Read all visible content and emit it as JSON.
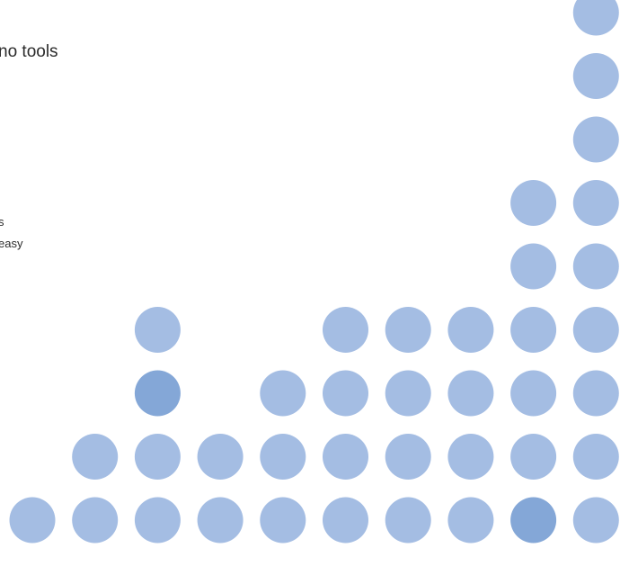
{
  "text_fragments": {
    "line_1": "no tools",
    "line_2": "s",
    "line_3": "easy"
  },
  "colors": {
    "dot_normal": "#a4bde3",
    "dot_highlight": "#84a7d7",
    "background": "#ffffff"
  },
  "chart_data": {
    "type": "scatter",
    "title": "",
    "xlabel": "",
    "ylabel": "",
    "description_note": "",
    "x_columns": [
      1,
      2,
      3,
      4,
      5,
      6,
      7,
      8,
      9,
      10
    ],
    "series": [
      {
        "values_per_column": [
          1,
          2,
          4,
          3,
          3,
          4,
          4,
          5,
          6,
          9
        ]
      }
    ],
    "grid": false,
    "highlighted_points": [
      {
        "column": 3,
        "row": 3
      },
      {
        "column": 7,
        "row": 5
      },
      {
        "column": 9,
        "row": 1
      }
    ],
    "missing_points": [
      {
        "column": 4,
        "row": 3
      },
      {
        "column": 8,
        "row": 5
      }
    ]
  }
}
